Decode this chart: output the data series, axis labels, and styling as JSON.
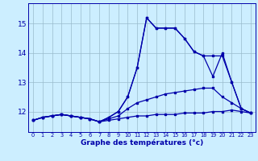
{
  "xlabel": "Graphe des températures (°c)",
  "bg_color": "#cceeff",
  "line_color": "#0000aa",
  "grid_color": "#99bbcc",
  "hours": [
    0,
    1,
    2,
    3,
    4,
    5,
    6,
    7,
    8,
    9,
    10,
    11,
    12,
    13,
    14,
    15,
    16,
    17,
    18,
    19,
    20,
    21,
    22,
    23
  ],
  "line1": [
    11.7,
    11.8,
    11.85,
    11.9,
    11.85,
    11.8,
    11.75,
    11.65,
    11.7,
    11.75,
    11.8,
    11.85,
    11.85,
    11.9,
    11.9,
    11.9,
    11.95,
    11.95,
    11.95,
    12.0,
    12.0,
    12.05,
    12.0,
    11.95
  ],
  "line2": [
    11.7,
    11.8,
    11.85,
    11.9,
    11.85,
    11.8,
    11.75,
    11.65,
    11.75,
    11.85,
    12.1,
    12.3,
    12.4,
    12.5,
    12.6,
    12.65,
    12.7,
    12.75,
    12.8,
    12.8,
    12.5,
    12.3,
    12.1,
    11.95
  ],
  "line3": [
    11.7,
    11.8,
    11.85,
    11.9,
    11.85,
    11.8,
    11.75,
    11.65,
    11.8,
    12.0,
    12.5,
    13.5,
    15.2,
    14.85,
    14.85,
    14.85,
    14.5,
    14.05,
    13.9,
    13.2,
    14.0,
    13.0,
    12.1,
    11.95
  ],
  "line4": [
    11.7,
    11.8,
    11.85,
    11.9,
    11.85,
    11.8,
    11.75,
    11.65,
    11.8,
    12.0,
    12.5,
    13.5,
    15.2,
    14.85,
    14.85,
    14.85,
    14.5,
    14.05,
    13.9,
    13.9,
    13.9,
    13.0,
    12.1,
    11.95
  ],
  "ylim": [
    11.3,
    15.7
  ],
  "yticks": [
    12,
    13,
    14,
    15
  ],
  "marker": "s",
  "markersize": 1.8,
  "linewidth": 0.9
}
